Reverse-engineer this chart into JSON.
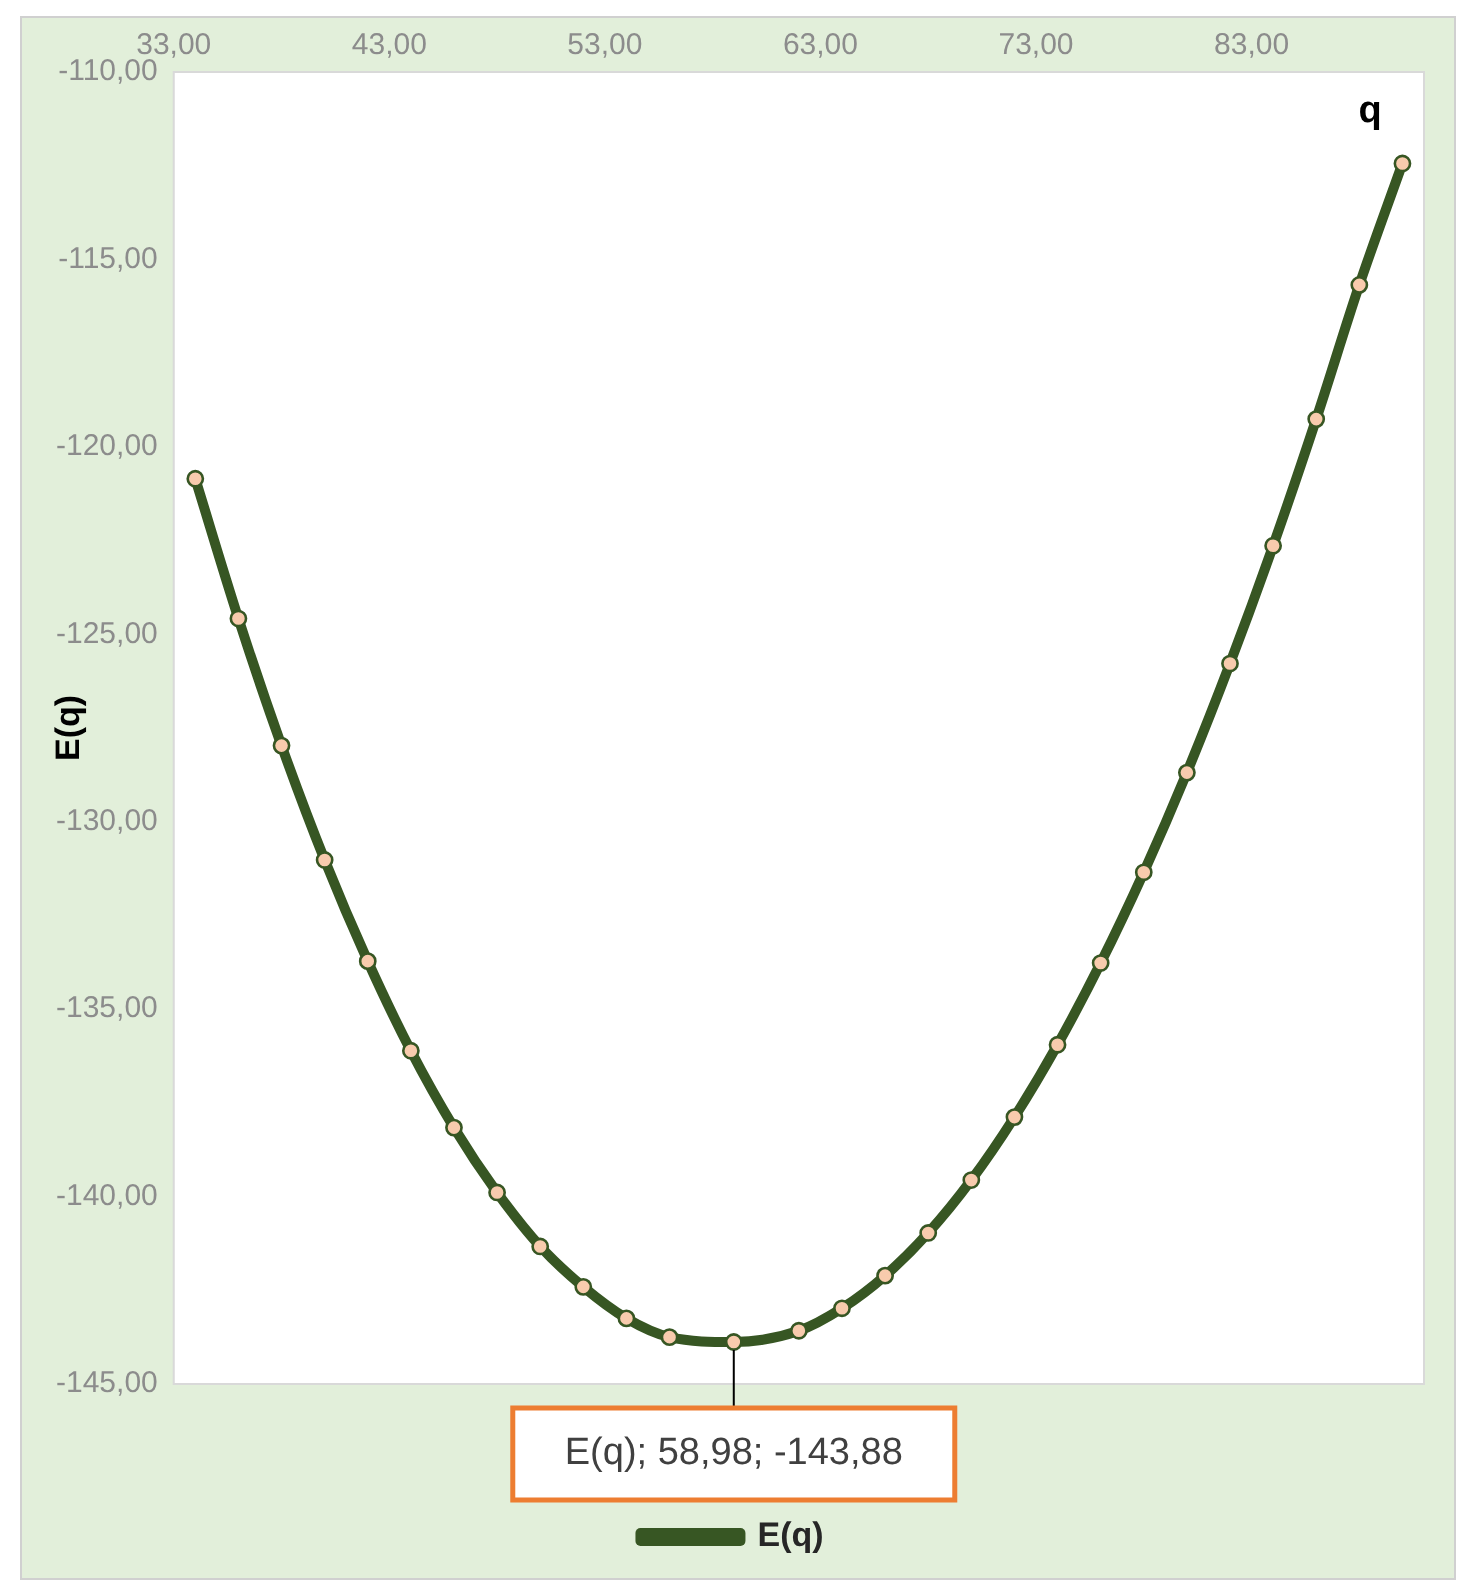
{
  "chart_data": {
    "type": "line",
    "xlabel": "q",
    "ylabel": "E(q)",
    "x": [
      34,
      36,
      38,
      40,
      42,
      44,
      46,
      48,
      50,
      52,
      54,
      56,
      58.98,
      62,
      64,
      66,
      68,
      70,
      72,
      74,
      76,
      78,
      80,
      82,
      84,
      86,
      88,
      90
    ],
    "series": [
      {
        "name": "E(q)",
        "color": "#375623",
        "values": [
          -120.85,
          -124.58,
          -127.97,
          -131.02,
          -133.72,
          -136.11,
          -138.16,
          -139.89,
          -141.33,
          -142.41,
          -143.25,
          -143.75,
          -143.88,
          -143.58,
          -142.98,
          -142.11,
          -140.97,
          -139.56,
          -137.88,
          -135.95,
          -133.77,
          -131.35,
          -128.69,
          -125.78,
          -122.64,
          -119.26,
          -115.68,
          -112.44
        ]
      }
    ],
    "xlim": [
      33,
      91
    ],
    "xticks": [
      {
        "value": 33,
        "label": "33,00"
      },
      {
        "value": 43,
        "label": "43,00"
      },
      {
        "value": 53,
        "label": "53,00"
      },
      {
        "value": 63,
        "label": "63,00"
      },
      {
        "value": 73,
        "label": "73,00"
      },
      {
        "value": 83,
        "label": "83,00"
      }
    ],
    "ylim": [
      -145,
      -110
    ],
    "yticks": [
      {
        "value": -145,
        "label": "-145,00"
      },
      {
        "value": -140,
        "label": "-140,00"
      },
      {
        "value": -135,
        "label": "-135,00"
      },
      {
        "value": -130,
        "label": "-130,00"
      },
      {
        "value": -125,
        "label": "-125,00"
      },
      {
        "value": -120,
        "label": "-120,00"
      },
      {
        "value": -115,
        "label": "-115,00"
      },
      {
        "value": -110,
        "label": "-110,00"
      }
    ],
    "annotations": [
      {
        "text": "E(q); 58,98; -143,88",
        "x": 58.98,
        "y": -143.88
      }
    ],
    "marker": "circle",
    "line_style": "solid",
    "grid": false,
    "legend": "bottom"
  }
}
